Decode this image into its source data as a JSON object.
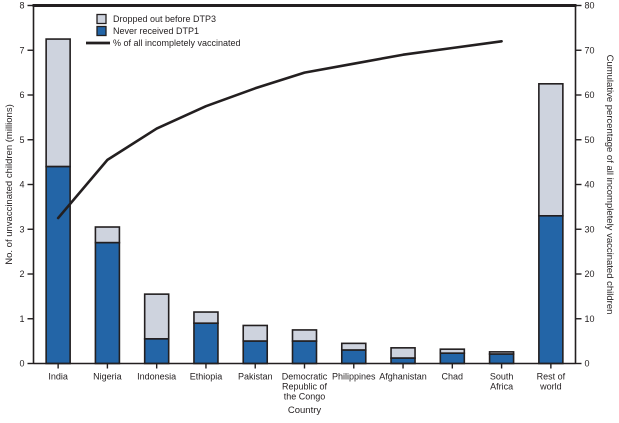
{
  "figure": {
    "background": "#ffffff",
    "ink_color": "#231f20"
  },
  "chart_data": {
    "type": "bar",
    "subtype": "pareto-stacked-bar-with-cumulative-line",
    "title": "",
    "xlabel": "Country",
    "categories": [
      "India",
      "Nigeria",
      "Indonesia",
      "Ethiopia",
      "Pakistan",
      "Democratic Republic of the Congo",
      "Philippines",
      "Afghanistan",
      "Chad",
      "South Africa",
      "Rest of world"
    ],
    "categories_multiline": [
      [
        "India"
      ],
      [
        "Nigeria"
      ],
      [
        "Indonesia"
      ],
      [
        "Ethiopia"
      ],
      [
        "Pakistan"
      ],
      [
        "Democratic",
        "Republic of",
        "the Congo"
      ],
      [
        "Philippines"
      ],
      [
        "Afghanistan"
      ],
      [
        "Chad"
      ],
      [
        "South",
        "Africa"
      ],
      [
        "Rest of",
        "world"
      ]
    ],
    "series": [
      {
        "name": "Never received DTP1",
        "type": "bar",
        "stack": "bottom",
        "color": "#2365a7",
        "values": [
          4.4,
          2.7,
          0.55,
          0.9,
          0.5,
          0.5,
          0.3,
          0.12,
          0.23,
          0.21,
          3.3
        ]
      },
      {
        "name": "Dropped out before DTP3",
        "type": "bar",
        "stack": "top",
        "color": "#ced3de",
        "values": [
          2.85,
          0.35,
          1.0,
          0.25,
          0.35,
          0.25,
          0.15,
          0.23,
          0.09,
          0.05,
          2.95
        ]
      },
      {
        "name": "% of all incompletely vaccinated",
        "type": "line",
        "axis": "right",
        "color": "#231f20",
        "values": [
          32.5,
          45.5,
          52.5,
          57.5,
          61.5,
          65,
          67,
          69,
          70.5,
          72,
          null
        ]
      }
    ],
    "left_axis": {
      "label": "No. of unvaccinated children (millions)",
      "min": 0,
      "max": 8,
      "tick_step": 1,
      "ticks": [
        0,
        1,
        2,
        3,
        4,
        5,
        6,
        7,
        8
      ]
    },
    "right_axis": {
      "label": "Cumulative percentage of all incompletely vaccinated children",
      "min": 0,
      "max": 80,
      "tick_step": 10,
      "ticks": [
        0,
        10,
        20,
        30,
        40,
        50,
        60,
        70,
        80
      ]
    },
    "legend": {
      "position": "top-left-inside",
      "items": [
        {
          "swatch": "square",
          "color": "#ced3de",
          "label": "Dropped out before DTP3"
        },
        {
          "swatch": "square",
          "color": "#2365a7",
          "label": "Never received DTP1"
        },
        {
          "swatch": "line",
          "color": "#231f20",
          "label": "% of all incompletely vaccinated"
        }
      ]
    },
    "grid": false
  }
}
